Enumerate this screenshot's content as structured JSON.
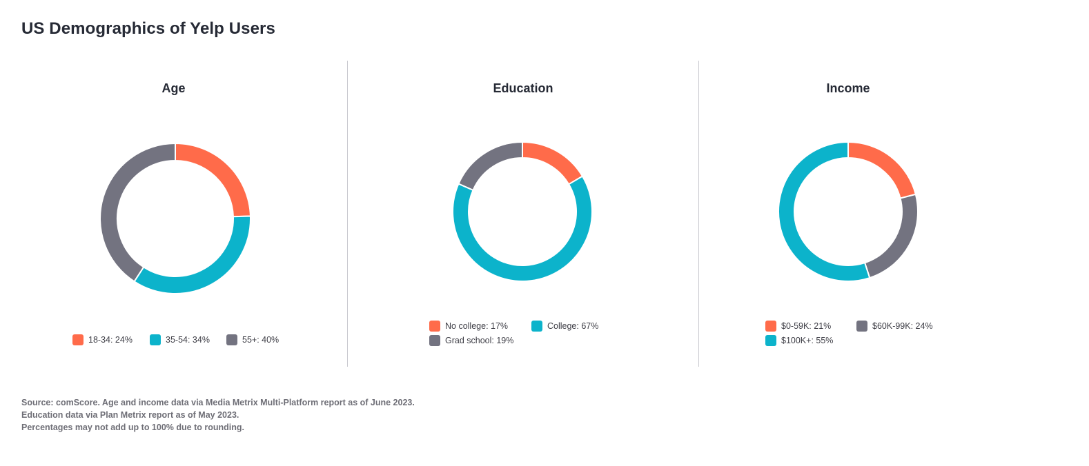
{
  "page_title": "US Demographics of Yelp Users",
  "colors": {
    "orange": "#ff6b4a",
    "teal": "#0cb3cb",
    "gray": "#737380"
  },
  "chart_data": [
    {
      "type": "pie",
      "variant": "donut",
      "title": "Age",
      "slices": [
        {
          "label": "18-34: 24%",
          "value": 24,
          "color": "#ff6b4a"
        },
        {
          "label": "35-54: 34%",
          "value": 34,
          "color": "#0cb3cb"
        },
        {
          "label": "55+: 40%",
          "value": 40,
          "color": "#737380"
        }
      ]
    },
    {
      "type": "pie",
      "variant": "donut",
      "title": "Education",
      "slices": [
        {
          "label": "No college: 17%",
          "value": 17,
          "color": "#ff6b4a"
        },
        {
          "label": "College: 67%",
          "value": 67,
          "color": "#0cb3cb"
        },
        {
          "label": "Grad school: 19%",
          "value": 19,
          "color": "#737380"
        }
      ]
    },
    {
      "type": "pie",
      "variant": "donut",
      "title": "Income",
      "slices": [
        {
          "label": "$0-59K: 21%",
          "value": 21,
          "color": "#ff6b4a"
        },
        {
          "label": "$60K-99K: 24%",
          "value": 24,
          "color": "#737380"
        },
        {
          "label": "$100K+: 55%",
          "value": 55,
          "color": "#0cb3cb"
        }
      ]
    }
  ],
  "footnote": [
    "Source: comScore. Age and income data via Media Metrix Multi-Platform report as of June 2023.",
    "Education data via Plan Metrix report as of May 2023.",
    "Percentages may not add up to 100% due to rounding."
  ]
}
